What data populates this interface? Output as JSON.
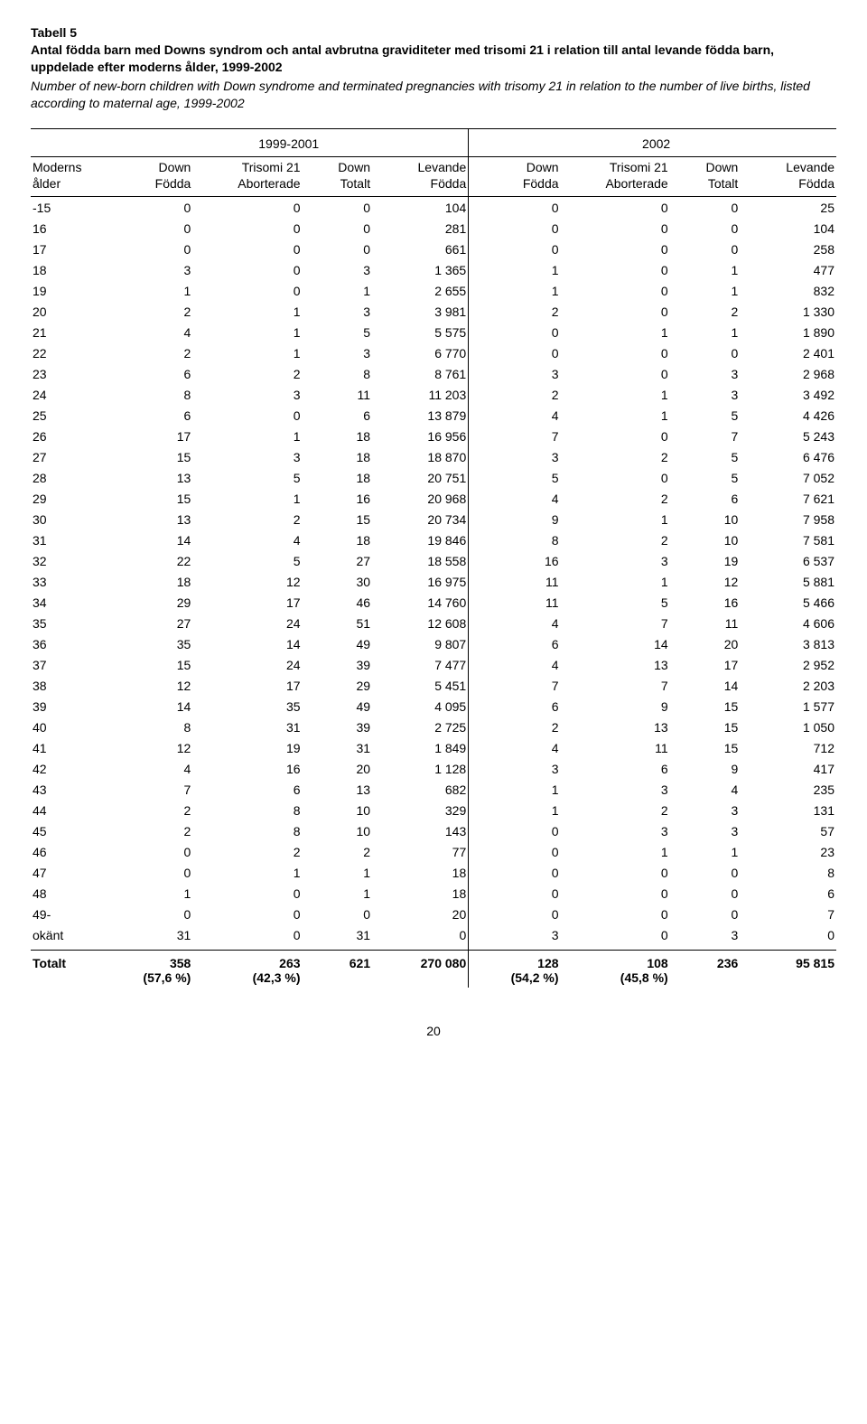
{
  "title": "Tabell 5",
  "subtitle_sv": "Antal födda barn med Downs syndrom och antal avbrutna graviditeter med trisomi 21 i relation till antal levande födda barn, uppdelade efter moderns ålder, 1999-2002",
  "subtitle_en": "Number of new-born children with Down syndrome and terminated pregnancies with trisomy 21 in relation to the number of live births, listed according to maternal age, 1999-2002",
  "periods": [
    "1999-2001",
    "2002"
  ],
  "columns": {
    "age": "Moderns\nålder",
    "down_fodda": "Down\nFödda",
    "trisomi_ab": "Trisomi 21\nAborterade",
    "down_totalt": "Down\nTotalt",
    "levande_fodda": "Levande\nFödda"
  },
  "rows": [
    {
      "age": "-15",
      "d1": "0",
      "t1": "0",
      "dt1": "0",
      "l1": "104",
      "d2": "0",
      "t2": "0",
      "dt2": "0",
      "l2": "25"
    },
    {
      "age": "16",
      "d1": "0",
      "t1": "0",
      "dt1": "0",
      "l1": "281",
      "d2": "0",
      "t2": "0",
      "dt2": "0",
      "l2": "104"
    },
    {
      "age": "17",
      "d1": "0",
      "t1": "0",
      "dt1": "0",
      "l1": "661",
      "d2": "0",
      "t2": "0",
      "dt2": "0",
      "l2": "258"
    },
    {
      "age": "18",
      "d1": "3",
      "t1": "0",
      "dt1": "3",
      "l1": "1 365",
      "d2": "1",
      "t2": "0",
      "dt2": "1",
      "l2": "477"
    },
    {
      "age": "19",
      "d1": "1",
      "t1": "0",
      "dt1": "1",
      "l1": "2 655",
      "d2": "1",
      "t2": "0",
      "dt2": "1",
      "l2": "832"
    },
    {
      "age": "20",
      "d1": "2",
      "t1": "1",
      "dt1": "3",
      "l1": "3 981",
      "d2": "2",
      "t2": "0",
      "dt2": "2",
      "l2": "1 330"
    },
    {
      "age": "21",
      "d1": "4",
      "t1": "1",
      "dt1": "5",
      "l1": "5 575",
      "d2": "0",
      "t2": "1",
      "dt2": "1",
      "l2": "1 890"
    },
    {
      "age": "22",
      "d1": "2",
      "t1": "1",
      "dt1": "3",
      "l1": "6 770",
      "d2": "0",
      "t2": "0",
      "dt2": "0",
      "l2": "2 401"
    },
    {
      "age": "23",
      "d1": "6",
      "t1": "2",
      "dt1": "8",
      "l1": "8 761",
      "d2": "3",
      "t2": "0",
      "dt2": "3",
      "l2": "2 968"
    },
    {
      "age": "24",
      "d1": "8",
      "t1": "3",
      "dt1": "11",
      "l1": "11 203",
      "d2": "2",
      "t2": "1",
      "dt2": "3",
      "l2": "3 492"
    },
    {
      "age": "25",
      "d1": "6",
      "t1": "0",
      "dt1": "6",
      "l1": "13 879",
      "d2": "4",
      "t2": "1",
      "dt2": "5",
      "l2": "4 426"
    },
    {
      "age": "26",
      "d1": "17",
      "t1": "1",
      "dt1": "18",
      "l1": "16 956",
      "d2": "7",
      "t2": "0",
      "dt2": "7",
      "l2": "5 243"
    },
    {
      "age": "27",
      "d1": "15",
      "t1": "3",
      "dt1": "18",
      "l1": "18 870",
      "d2": "3",
      "t2": "2",
      "dt2": "5",
      "l2": "6 476"
    },
    {
      "age": "28",
      "d1": "13",
      "t1": "5",
      "dt1": "18",
      "l1": "20 751",
      "d2": "5",
      "t2": "0",
      "dt2": "5",
      "l2": "7 052"
    },
    {
      "age": "29",
      "d1": "15",
      "t1": "1",
      "dt1": "16",
      "l1": "20 968",
      "d2": "4",
      "t2": "2",
      "dt2": "6",
      "l2": "7 621"
    },
    {
      "age": "30",
      "d1": "13",
      "t1": "2",
      "dt1": "15",
      "l1": "20 734",
      "d2": "9",
      "t2": "1",
      "dt2": "10",
      "l2": "7 958"
    },
    {
      "age": "31",
      "d1": "14",
      "t1": "4",
      "dt1": "18",
      "l1": "19 846",
      "d2": "8",
      "t2": "2",
      "dt2": "10",
      "l2": "7 581"
    },
    {
      "age": "32",
      "d1": "22",
      "t1": "5",
      "dt1": "27",
      "l1": "18 558",
      "d2": "16",
      "t2": "3",
      "dt2": "19",
      "l2": "6 537"
    },
    {
      "age": "33",
      "d1": "18",
      "t1": "12",
      "dt1": "30",
      "l1": "16 975",
      "d2": "11",
      "t2": "1",
      "dt2": "12",
      "l2": "5 881"
    },
    {
      "age": "34",
      "d1": "29",
      "t1": "17",
      "dt1": "46",
      "l1": "14 760",
      "d2": "11",
      "t2": "5",
      "dt2": "16",
      "l2": "5 466"
    },
    {
      "age": "35",
      "d1": "27",
      "t1": "24",
      "dt1": "51",
      "l1": "12 608",
      "d2": "4",
      "t2": "7",
      "dt2": "11",
      "l2": "4 606"
    },
    {
      "age": "36",
      "d1": "35",
      "t1": "14",
      "dt1": "49",
      "l1": "9 807",
      "d2": "6",
      "t2": "14",
      "dt2": "20",
      "l2": "3 813"
    },
    {
      "age": "37",
      "d1": "15",
      "t1": "24",
      "dt1": "39",
      "l1": "7 477",
      "d2": "4",
      "t2": "13",
      "dt2": "17",
      "l2": "2 952"
    },
    {
      "age": "38",
      "d1": "12",
      "t1": "17",
      "dt1": "29",
      "l1": "5 451",
      "d2": "7",
      "t2": "7",
      "dt2": "14",
      "l2": "2 203"
    },
    {
      "age": "39",
      "d1": "14",
      "t1": "35",
      "dt1": "49",
      "l1": "4 095",
      "d2": "6",
      "t2": "9",
      "dt2": "15",
      "l2": "1 577"
    },
    {
      "age": "40",
      "d1": "8",
      "t1": "31",
      "dt1": "39",
      "l1": "2 725",
      "d2": "2",
      "t2": "13",
      "dt2": "15",
      "l2": "1 050"
    },
    {
      "age": "41",
      "d1": "12",
      "t1": "19",
      "dt1": "31",
      "l1": "1 849",
      "d2": "4",
      "t2": "11",
      "dt2": "15",
      "l2": "712"
    },
    {
      "age": "42",
      "d1": "4",
      "t1": "16",
      "dt1": "20",
      "l1": "1 128",
      "d2": "3",
      "t2": "6",
      "dt2": "9",
      "l2": "417"
    },
    {
      "age": "43",
      "d1": "7",
      "t1": "6",
      "dt1": "13",
      "l1": "682",
      "d2": "1",
      "t2": "3",
      "dt2": "4",
      "l2": "235"
    },
    {
      "age": "44",
      "d1": "2",
      "t1": "8",
      "dt1": "10",
      "l1": "329",
      "d2": "1",
      "t2": "2",
      "dt2": "3",
      "l2": "131"
    },
    {
      "age": "45",
      "d1": "2",
      "t1": "8",
      "dt1": "10",
      "l1": "143",
      "d2": "0",
      "t2": "3",
      "dt2": "3",
      "l2": "57"
    },
    {
      "age": "46",
      "d1": "0",
      "t1": "2",
      "dt1": "2",
      "l1": "77",
      "d2": "0",
      "t2": "1",
      "dt2": "1",
      "l2": "23"
    },
    {
      "age": "47",
      "d1": "0",
      "t1": "1",
      "dt1": "1",
      "l1": "18",
      "d2": "0",
      "t2": "0",
      "dt2": "0",
      "l2": "8"
    },
    {
      "age": "48",
      "d1": "1",
      "t1": "0",
      "dt1": "1",
      "l1": "18",
      "d2": "0",
      "t2": "0",
      "dt2": "0",
      "l2": "6"
    },
    {
      "age": "49-",
      "d1": "0",
      "t1": "0",
      "dt1": "0",
      "l1": "20",
      "d2": "0",
      "t2": "0",
      "dt2": "0",
      "l2": "7"
    },
    {
      "age": "okänt",
      "d1": "31",
      "t1": "0",
      "dt1": "31",
      "l1": "0",
      "d2": "3",
      "t2": "0",
      "dt2": "3",
      "l2": "0"
    }
  ],
  "totals": {
    "label": "Totalt",
    "d1": "358",
    "d1_pct": "(57,6 %)",
    "t1": "263",
    "t1_pct": "(42,3 %)",
    "dt1": "621",
    "l1": "270 080",
    "d2": "128",
    "d2_pct": "(54,2 %)",
    "t2": "108",
    "t2_pct": "(45,8 %)",
    "dt2": "236",
    "l2": "95 815"
  },
  "page_number": "20"
}
